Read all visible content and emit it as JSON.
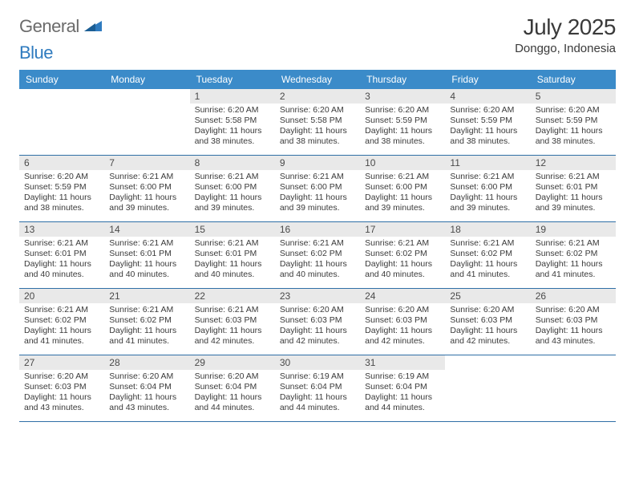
{
  "brand": {
    "part1": "General",
    "part2": "Blue"
  },
  "title": "July 2025",
  "location": "Donggo, Indonesia",
  "colors": {
    "header_bg": "#3b8bc9",
    "row_divider": "#2f6fa6",
    "daynum_bg": "#e9e9e9",
    "logo_gray": "#6b6b6b",
    "logo_blue": "#2f7bbf"
  },
  "daysOfWeek": [
    "Sunday",
    "Monday",
    "Tuesday",
    "Wednesday",
    "Thursday",
    "Friday",
    "Saturday"
  ],
  "startOffset": 2,
  "days": [
    {
      "n": 1,
      "sunrise": "6:20 AM",
      "sunset": "5:58 PM",
      "daylight": "11 hours and 38 minutes."
    },
    {
      "n": 2,
      "sunrise": "6:20 AM",
      "sunset": "5:58 PM",
      "daylight": "11 hours and 38 minutes."
    },
    {
      "n": 3,
      "sunrise": "6:20 AM",
      "sunset": "5:59 PM",
      "daylight": "11 hours and 38 minutes."
    },
    {
      "n": 4,
      "sunrise": "6:20 AM",
      "sunset": "5:59 PM",
      "daylight": "11 hours and 38 minutes."
    },
    {
      "n": 5,
      "sunrise": "6:20 AM",
      "sunset": "5:59 PM",
      "daylight": "11 hours and 38 minutes."
    },
    {
      "n": 6,
      "sunrise": "6:20 AM",
      "sunset": "5:59 PM",
      "daylight": "11 hours and 38 minutes."
    },
    {
      "n": 7,
      "sunrise": "6:21 AM",
      "sunset": "6:00 PM",
      "daylight": "11 hours and 39 minutes."
    },
    {
      "n": 8,
      "sunrise": "6:21 AM",
      "sunset": "6:00 PM",
      "daylight": "11 hours and 39 minutes."
    },
    {
      "n": 9,
      "sunrise": "6:21 AM",
      "sunset": "6:00 PM",
      "daylight": "11 hours and 39 minutes."
    },
    {
      "n": 10,
      "sunrise": "6:21 AM",
      "sunset": "6:00 PM",
      "daylight": "11 hours and 39 minutes."
    },
    {
      "n": 11,
      "sunrise": "6:21 AM",
      "sunset": "6:00 PM",
      "daylight": "11 hours and 39 minutes."
    },
    {
      "n": 12,
      "sunrise": "6:21 AM",
      "sunset": "6:01 PM",
      "daylight": "11 hours and 39 minutes."
    },
    {
      "n": 13,
      "sunrise": "6:21 AM",
      "sunset": "6:01 PM",
      "daylight": "11 hours and 40 minutes."
    },
    {
      "n": 14,
      "sunrise": "6:21 AM",
      "sunset": "6:01 PM",
      "daylight": "11 hours and 40 minutes."
    },
    {
      "n": 15,
      "sunrise": "6:21 AM",
      "sunset": "6:01 PM",
      "daylight": "11 hours and 40 minutes."
    },
    {
      "n": 16,
      "sunrise": "6:21 AM",
      "sunset": "6:02 PM",
      "daylight": "11 hours and 40 minutes."
    },
    {
      "n": 17,
      "sunrise": "6:21 AM",
      "sunset": "6:02 PM",
      "daylight": "11 hours and 40 minutes."
    },
    {
      "n": 18,
      "sunrise": "6:21 AM",
      "sunset": "6:02 PM",
      "daylight": "11 hours and 41 minutes."
    },
    {
      "n": 19,
      "sunrise": "6:21 AM",
      "sunset": "6:02 PM",
      "daylight": "11 hours and 41 minutes."
    },
    {
      "n": 20,
      "sunrise": "6:21 AM",
      "sunset": "6:02 PM",
      "daylight": "11 hours and 41 minutes."
    },
    {
      "n": 21,
      "sunrise": "6:21 AM",
      "sunset": "6:02 PM",
      "daylight": "11 hours and 41 minutes."
    },
    {
      "n": 22,
      "sunrise": "6:21 AM",
      "sunset": "6:03 PM",
      "daylight": "11 hours and 42 minutes."
    },
    {
      "n": 23,
      "sunrise": "6:20 AM",
      "sunset": "6:03 PM",
      "daylight": "11 hours and 42 minutes."
    },
    {
      "n": 24,
      "sunrise": "6:20 AM",
      "sunset": "6:03 PM",
      "daylight": "11 hours and 42 minutes."
    },
    {
      "n": 25,
      "sunrise": "6:20 AM",
      "sunset": "6:03 PM",
      "daylight": "11 hours and 42 minutes."
    },
    {
      "n": 26,
      "sunrise": "6:20 AM",
      "sunset": "6:03 PM",
      "daylight": "11 hours and 43 minutes."
    },
    {
      "n": 27,
      "sunrise": "6:20 AM",
      "sunset": "6:03 PM",
      "daylight": "11 hours and 43 minutes."
    },
    {
      "n": 28,
      "sunrise": "6:20 AM",
      "sunset": "6:04 PM",
      "daylight": "11 hours and 43 minutes."
    },
    {
      "n": 29,
      "sunrise": "6:20 AM",
      "sunset": "6:04 PM",
      "daylight": "11 hours and 44 minutes."
    },
    {
      "n": 30,
      "sunrise": "6:19 AM",
      "sunset": "6:04 PM",
      "daylight": "11 hours and 44 minutes."
    },
    {
      "n": 31,
      "sunrise": "6:19 AM",
      "sunset": "6:04 PM",
      "daylight": "11 hours and 44 minutes."
    }
  ],
  "labels": {
    "sunrise": "Sunrise:",
    "sunset": "Sunset:",
    "daylight": "Daylight:"
  }
}
